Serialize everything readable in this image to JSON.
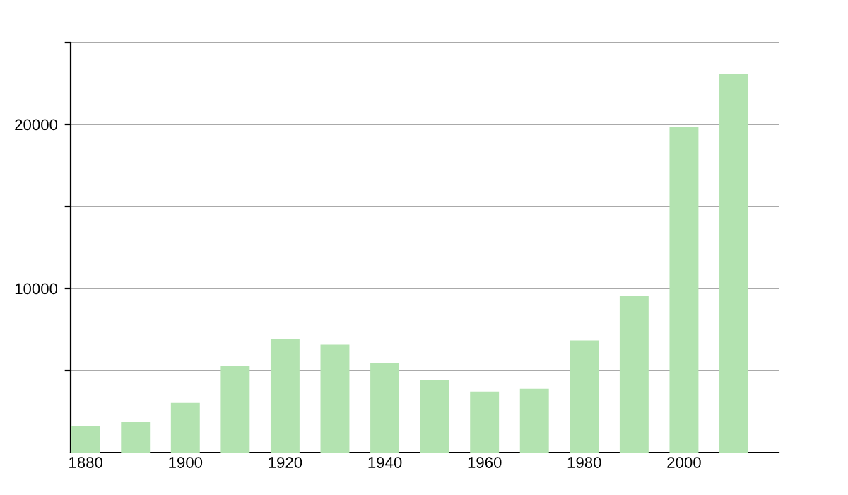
{
  "chart_data": {
    "type": "bar",
    "x": [
      1880,
      1890,
      1900,
      1910,
      1920,
      1930,
      1940,
      1950,
      1960,
      1970,
      1980,
      1990,
      2000,
      2010
    ],
    "values": [
      1640,
      1850,
      3030,
      5270,
      6920,
      6570,
      5450,
      4410,
      3720,
      3890,
      6830,
      9570,
      19860,
      23080
    ],
    "color": "#b3e3b0",
    "xlim": [
      1877,
      2019
    ],
    "xticks": [
      1880,
      1900,
      1920,
      1940,
      1960,
      1980,
      2000
    ],
    "ylim": [
      0,
      25000
    ],
    "yticks": [
      {
        "value": 5000,
        "label": null
      },
      10000,
      {
        "value": 15000,
        "label": null
      },
      20000,
      {
        "value": 25000,
        "label": null
      }
    ],
    "grid": "y",
    "legend": false
  }
}
